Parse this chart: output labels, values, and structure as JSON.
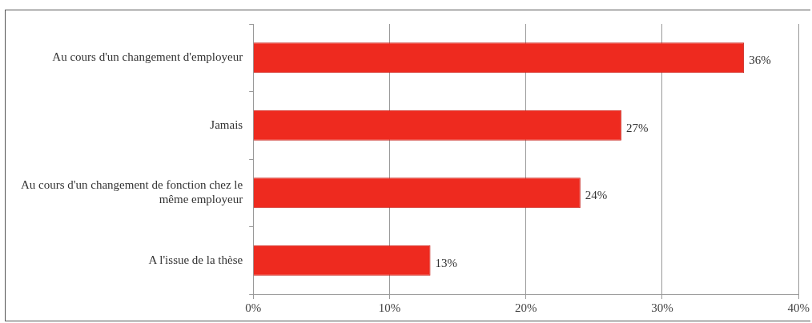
{
  "chart_data": {
    "type": "bar",
    "orientation": "horizontal",
    "categories": [
      "Au cours d'un changement d'employeur",
      "Jamais",
      "Au cours d'un changement de fonction chez le même employeur",
      "A l'issue de la thèse"
    ],
    "values": [
      36,
      27,
      24,
      13
    ],
    "color": "#ee2a1f",
    "value_labels": [
      "36%",
      "27%",
      "24%",
      "13%"
    ],
    "xlim": [
      0,
      40
    ],
    "xticks": [
      {
        "value": 0,
        "label": "0%"
      },
      {
        "value": 10,
        "label": "10%"
      },
      {
        "value": 20,
        "label": "20%"
      },
      {
        "value": 30,
        "label": "30%"
      },
      {
        "value": 40,
        "label": "40%"
      }
    ],
    "grid": "x",
    "legend": false
  }
}
